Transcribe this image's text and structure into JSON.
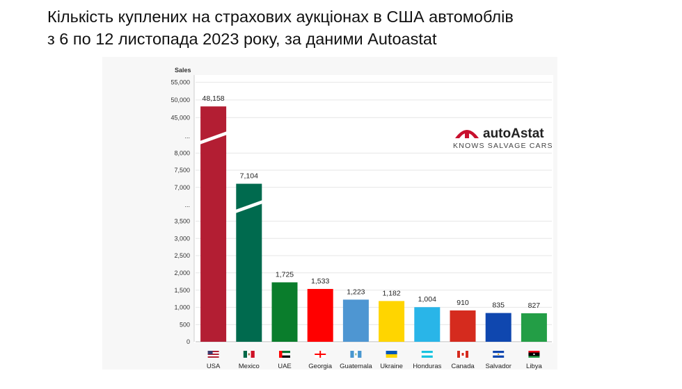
{
  "title": {
    "line1": "Кількість куплених на страхових аукціонах в США автомоблів",
    "line2": "з 6 по 12 листопада 2023 року, за даними Autoastat"
  },
  "brand": {
    "name": "autoAstat",
    "tagline": "KNOWS SALVAGE CARS",
    "color": "#c8102e"
  },
  "chart_data": {
    "type": "bar",
    "ylabel": "Sales",
    "axis_break": true,
    "categories": [
      "USA",
      "Mexico",
      "UAE",
      "Georgia",
      "Guatemala",
      "Ukraine",
      "Honduras",
      "Canada",
      "Salvador",
      "Libya"
    ],
    "values": [
      48158,
      7104,
      1725,
      1533,
      1223,
      1182,
      1004,
      910,
      835,
      827
    ],
    "value_labels": [
      "48,158",
      "7,104",
      "1,725",
      "1,533",
      "1,223",
      "1,182",
      "1,004",
      "910",
      "835",
      "827"
    ],
    "colors": [
      "#b31e33",
      "#006a4e",
      "#0a7d2c",
      "#ff0000",
      "#4e96d2",
      "#ffd500",
      "#29b5e8",
      "#d52b1e",
      "#0f47af",
      "#239e46"
    ],
    "segments": [
      {
        "ticks": [
          "0",
          "500",
          "1,000",
          "1,500",
          "2,000",
          "2,500",
          "3,000",
          "3,500"
        ],
        "ylim": [
          0,
          3750
        ]
      },
      {
        "ticks": [
          "7,000",
          "7,500",
          "8,000"
        ],
        "ylim": [
          6750,
          8250
        ]
      },
      {
        "ticks": [
          "45,000",
          "50,000",
          "55,000"
        ],
        "ylim": [
          42500,
          56250
        ]
      }
    ],
    "break_label": "...",
    "grid": true
  }
}
